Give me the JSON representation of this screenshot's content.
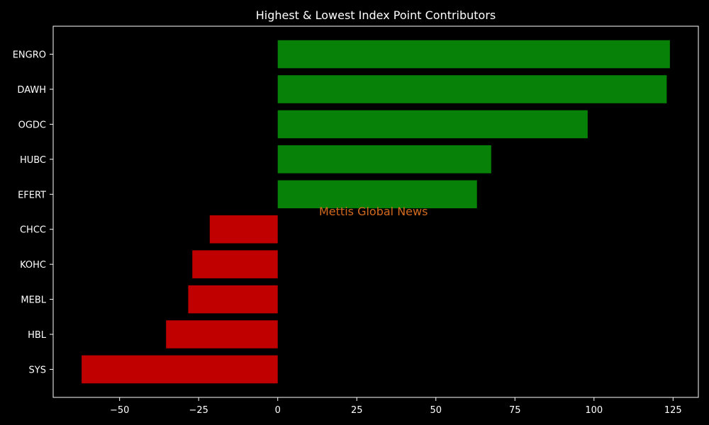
{
  "chart_data": {
    "type": "bar",
    "orientation": "horizontal",
    "title": "Highest & Lowest Index Point Contributors",
    "xlabel": "",
    "ylabel": "",
    "categories": [
      "ENGRO",
      "DAWH",
      "OGDC",
      "HUBC",
      "EFERT",
      "CHCC",
      "KOHC",
      "MEBL",
      "HBL",
      "SYS"
    ],
    "values": [
      124,
      123,
      98,
      67.5,
      63,
      -21.5,
      -27,
      -28.3,
      -35.3,
      -62
    ],
    "colors": [
      "#078107",
      "#078107",
      "#078107",
      "#078107",
      "#078107",
      "#c00000",
      "#c00000",
      "#c00000",
      "#c00000",
      "#c00000"
    ],
    "xlim": [
      -71,
      133
    ],
    "xticks": [
      -50,
      -25,
      0,
      25,
      50,
      75,
      100,
      125
    ],
    "xtick_labels": [
      "−50",
      "−25",
      "0",
      "25",
      "50",
      "75",
      "100",
      "125"
    ],
    "grid": false,
    "legend": "none",
    "annotation": "Mettis Global News"
  }
}
